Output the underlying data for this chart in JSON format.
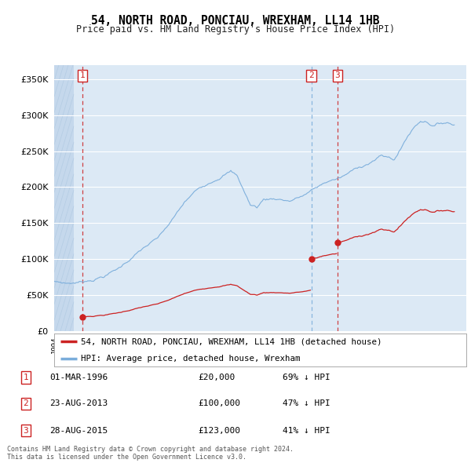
{
  "title": "54, NORTH ROAD, PONCIAU, WREXHAM, LL14 1HB",
  "subtitle": "Price paid vs. HM Land Registry's House Price Index (HPI)",
  "ytick_values": [
    0,
    50000,
    100000,
    150000,
    200000,
    250000,
    300000,
    350000
  ],
  "ylim": [
    0,
    370000
  ],
  "xlim_start": 1994.0,
  "xlim_end": 2025.5,
  "bg_color": "#dce9f5",
  "grid_color": "#ffffff",
  "red_line_color": "#cc2222",
  "blue_line_color": "#7aaddb",
  "vline1_color": "#cc2222",
  "vline2_color": "#7aaddb",
  "vline3_color": "#cc2222",
  "transactions": [
    {
      "num": 1,
      "date": "01-MAR-1996",
      "year": 1996.17,
      "price": 20000,
      "hpi_pct": "69% ↓ HPI",
      "vline_style": "red"
    },
    {
      "num": 2,
      "date": "23-AUG-2013",
      "year": 2013.65,
      "price": 100000,
      "hpi_pct": "47% ↓ HPI",
      "vline_style": "blue"
    },
    {
      "num": 3,
      "date": "28-AUG-2015",
      "year": 2015.65,
      "price": 123000,
      "hpi_pct": "41% ↓ HPI",
      "vline_style": "red"
    }
  ],
  "legend_entries": [
    "54, NORTH ROAD, PONCIAU, WREXHAM, LL14 1HB (detached house)",
    "HPI: Average price, detached house, Wrexham"
  ],
  "footer_text": "Contains HM Land Registry data © Crown copyright and database right 2024.\nThis data is licensed under the Open Government Licence v3.0."
}
